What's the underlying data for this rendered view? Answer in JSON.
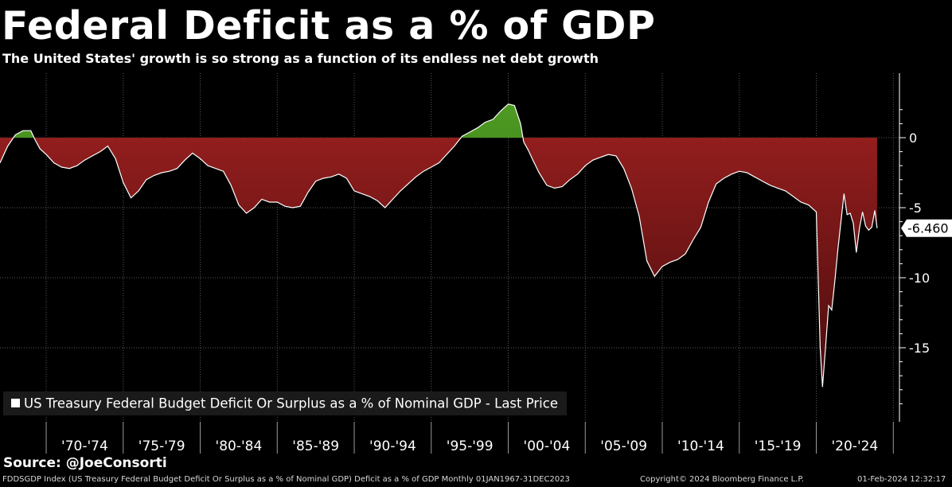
{
  "header": {
    "title": "Federal Deficit as a % of GDP",
    "subtitle": "The United States' growth is so strong as a function of its endless net debt growth"
  },
  "footer": {
    "source": "Source: @JoeConsorti",
    "description": "FDDSGDP Index (US Treasury Federal Budget Deficit Or Surplus as a % of Nominal GDP) Deficit as a % of GDP  Monthly 01JAN1967-31DEC2023",
    "copyright": "Copyright© 2024 Bloomberg Finance L.P.",
    "timestamp": "01-Feb-2024 12:32:17"
  },
  "colors": {
    "background": "#000000",
    "deficit_fill": "#8b1a1a",
    "surplus_fill": "#3f7d1c",
    "line": "#ffffff",
    "grid": "#5a5a5a"
  },
  "chart_data": {
    "type": "area",
    "legend": "US Treasury Federal Budget Deficit Or Surplus as a % of Nominal GDP - Last Price",
    "legend_position": "bottom-left",
    "last_value_label": "-6.460",
    "ylim": [
      -20,
      3
    ],
    "yticks": [
      0,
      -5,
      -10,
      -15
    ],
    "ytick_labels": [
      "0",
      "-5",
      "-10",
      "-15"
    ],
    "xlim": [
      1967.0,
      2025.4
    ],
    "xtick_labels": [
      "'70-'74",
      "'75-'79",
      "'80-'84",
      "'85-'89",
      "'90-'94",
      "'95-'99",
      "'00-'04",
      "'05-'09",
      "'10-'14",
      "'15-'19",
      "'20-'24"
    ],
    "grid": true,
    "x": [
      1967.0,
      1967.5,
      1968.0,
      1968.5,
      1969.0,
      1969.3,
      1969.6,
      1970.0,
      1970.5,
      1971.0,
      1971.5,
      1972.0,
      1972.5,
      1973.0,
      1973.5,
      1974.0,
      1974.5,
      1975.0,
      1975.5,
      1976.0,
      1976.5,
      1977.0,
      1977.5,
      1978.0,
      1978.5,
      1979.0,
      1979.5,
      1980.0,
      1980.5,
      1981.0,
      1981.5,
      1982.0,
      1982.5,
      1983.0,
      1983.5,
      1984.0,
      1984.5,
      1985.0,
      1985.5,
      1986.0,
      1986.5,
      1987.0,
      1987.5,
      1988.0,
      1988.5,
      1989.0,
      1989.5,
      1990.0,
      1990.5,
      1991.0,
      1991.5,
      1992.0,
      1992.5,
      1993.0,
      1993.5,
      1994.0,
      1994.5,
      1995.0,
      1995.5,
      1996.0,
      1996.5,
      1997.0,
      1997.5,
      1998.0,
      1998.5,
      1999.0,
      1999.5,
      2000.0,
      2000.4,
      2000.8,
      2001.0,
      2001.3,
      2001.6,
      2002.0,
      2002.5,
      2003.0,
      2003.5,
      2004.0,
      2004.5,
      2005.0,
      2005.5,
      2006.0,
      2006.5,
      2007.0,
      2007.5,
      2008.0,
      2008.5,
      2009.0,
      2009.5,
      2010.0,
      2010.5,
      2011.0,
      2011.5,
      2012.0,
      2012.5,
      2013.0,
      2013.5,
      2014.0,
      2014.5,
      2015.0,
      2015.5,
      2016.0,
      2016.5,
      2017.0,
      2017.5,
      2018.0,
      2018.5,
      2019.0,
      2019.5,
      2020.0,
      2020.25,
      2020.4,
      2020.6,
      2020.8,
      2021.0,
      2021.2,
      2021.4,
      2021.6,
      2021.8,
      2022.0,
      2022.2,
      2022.4,
      2022.6,
      2022.8,
      2023.0,
      2023.2,
      2023.4,
      2023.6,
      2023.8,
      2023.95
    ],
    "y": [
      -1.8,
      -0.6,
      0.2,
      0.5,
      0.5,
      -0.2,
      -0.8,
      -1.2,
      -1.8,
      -2.1,
      -2.2,
      -2.0,
      -1.6,
      -1.3,
      -1.0,
      -0.6,
      -1.5,
      -3.2,
      -4.3,
      -3.8,
      -3.0,
      -2.7,
      -2.5,
      -2.4,
      -2.2,
      -1.6,
      -1.1,
      -1.5,
      -2.0,
      -2.2,
      -2.4,
      -3.4,
      -4.8,
      -5.4,
      -5.0,
      -4.4,
      -4.6,
      -4.6,
      -4.9,
      -5.0,
      -4.9,
      -3.9,
      -3.1,
      -2.9,
      -2.8,
      -2.6,
      -2.9,
      -3.8,
      -4.0,
      -4.2,
      -4.5,
      -5.0,
      -4.4,
      -3.8,
      -3.3,
      -2.8,
      -2.4,
      -2.1,
      -1.8,
      -1.2,
      -0.6,
      0.1,
      0.4,
      0.7,
      1.1,
      1.3,
      1.9,
      2.4,
      2.3,
      1.0,
      -0.3,
      -0.9,
      -1.6,
      -2.5,
      -3.4,
      -3.6,
      -3.5,
      -3.0,
      -2.6,
      -2.0,
      -1.6,
      -1.4,
      -1.2,
      -1.3,
      -2.2,
      -3.6,
      -5.6,
      -8.8,
      -9.9,
      -9.2,
      -8.9,
      -8.7,
      -8.3,
      -7.3,
      -6.4,
      -4.6,
      -3.3,
      -2.9,
      -2.6,
      -2.4,
      -2.5,
      -2.8,
      -3.1,
      -3.4,
      -3.6,
      -3.8,
      -4.2,
      -4.6,
      -4.8,
      -5.3,
      -15.0,
      -17.8,
      -15.0,
      -12.0,
      -12.3,
      -10.3,
      -8.0,
      -6.0,
      -4.0,
      -5.5,
      -5.4,
      -6.1,
      -8.2,
      -6.5,
      -5.3,
      -6.3,
      -6.6,
      -6.4,
      -5.2,
      -6.46
    ]
  }
}
